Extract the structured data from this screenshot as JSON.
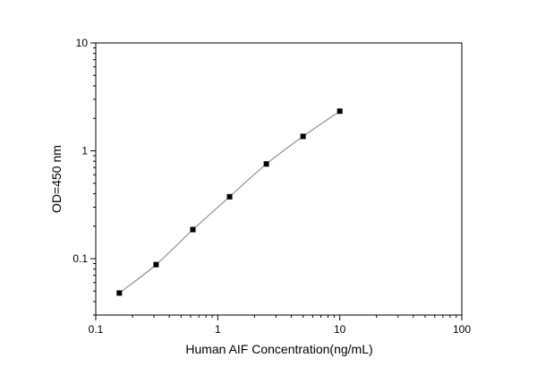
{
  "chart_data": {
    "type": "scatter",
    "title": "",
    "xlabel": "Human AIF Concentration(ng/mL)",
    "ylabel": "OD=450 nm",
    "xscale": "log",
    "yscale": "log",
    "xlim": [
      0.1,
      100
    ],
    "ylim": [
      0.03,
      10
    ],
    "grid": false,
    "legend": "none",
    "x_ticks": [
      {
        "value": 0.1,
        "label": "0.1"
      },
      {
        "value": 1,
        "label": "1"
      },
      {
        "value": 10,
        "label": "10"
      },
      {
        "value": 100,
        "label": "100"
      }
    ],
    "y_ticks": [
      {
        "value": 0.1,
        "label": "0.1"
      },
      {
        "value": 1,
        "label": "1"
      },
      {
        "value": 10,
        "label": "10"
      }
    ],
    "series": [
      {
        "x": [
          0.156,
          0.312,
          0.625,
          1.25,
          2.5,
          5,
          10
        ],
        "y": [
          0.048,
          0.088,
          0.186,
          0.375,
          0.755,
          1.36,
          2.33
        ],
        "marker": "square",
        "fit_line": true
      }
    ],
    "colors": {
      "marker": "#000000",
      "fit_line": "#808080",
      "axis": "#000000"
    }
  }
}
